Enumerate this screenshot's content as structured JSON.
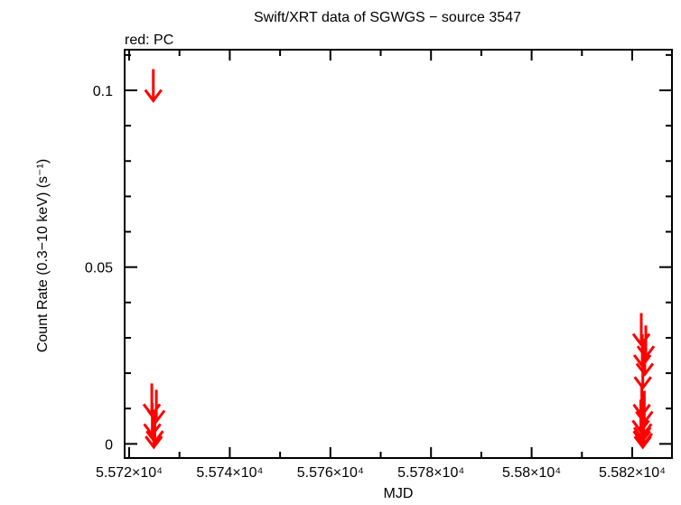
{
  "chart_data": {
    "type": "scatter",
    "title": "Swift/XRT data of SGWGS − source 3547",
    "subtitle": "red: PC",
    "xlabel": "MJD",
    "ylabel": "Count Rate (0.3−10 keV) (s⁻¹)",
    "xlim": [
      55719.1,
      55827.9
    ],
    "ylim": [
      -0.004,
      0.1115
    ],
    "x_ticks": [
      55720,
      55740,
      55760,
      55780,
      55800,
      55820
    ],
    "x_tick_labels": [
      "5.572×10⁴",
      "5.574×10⁴",
      "5.576×10⁴",
      "5.578×10⁴",
      "5.58×10⁴",
      "5.582×10⁴"
    ],
    "y_ticks": [
      0,
      0.05,
      0.1
    ],
    "y_tick_labels": [
      "0",
      "0.05",
      "0.1"
    ],
    "grid": false,
    "series": [
      {
        "name": "PC",
        "color": "#ff0000",
        "marker": "upper-limit-arrow",
        "points": [
          {
            "x": 55724.8,
            "y": 0.106
          },
          {
            "x": 55724.5,
            "y": 0.0171
          },
          {
            "x": 55725.4,
            "y": 0.0153
          },
          {
            "x": 55724.6,
            "y": 0.0115
          },
          {
            "x": 55725.1,
            "y": 0.0095
          },
          {
            "x": 55724.9,
            "y": 0.008
          },
          {
            "x": 55821.8,
            "y": 0.037
          },
          {
            "x": 55822.7,
            "y": 0.0335
          },
          {
            "x": 55822.0,
            "y": 0.031
          },
          {
            "x": 55822.5,
            "y": 0.0286
          },
          {
            "x": 55822.1,
            "y": 0.0248
          },
          {
            "x": 55821.9,
            "y": 0.017
          },
          {
            "x": 55822.4,
            "y": 0.015
          },
          {
            "x": 55821.7,
            "y": 0.0125
          },
          {
            "x": 55822.2,
            "y": 0.0115
          },
          {
            "x": 55822.0,
            "y": 0.0105
          },
          {
            "x": 55821.9,
            "y": 0.0095
          },
          {
            "x": 55822.3,
            "y": 0.0088
          },
          {
            "x": 55822.1,
            "y": 0.008
          }
        ]
      }
    ]
  }
}
